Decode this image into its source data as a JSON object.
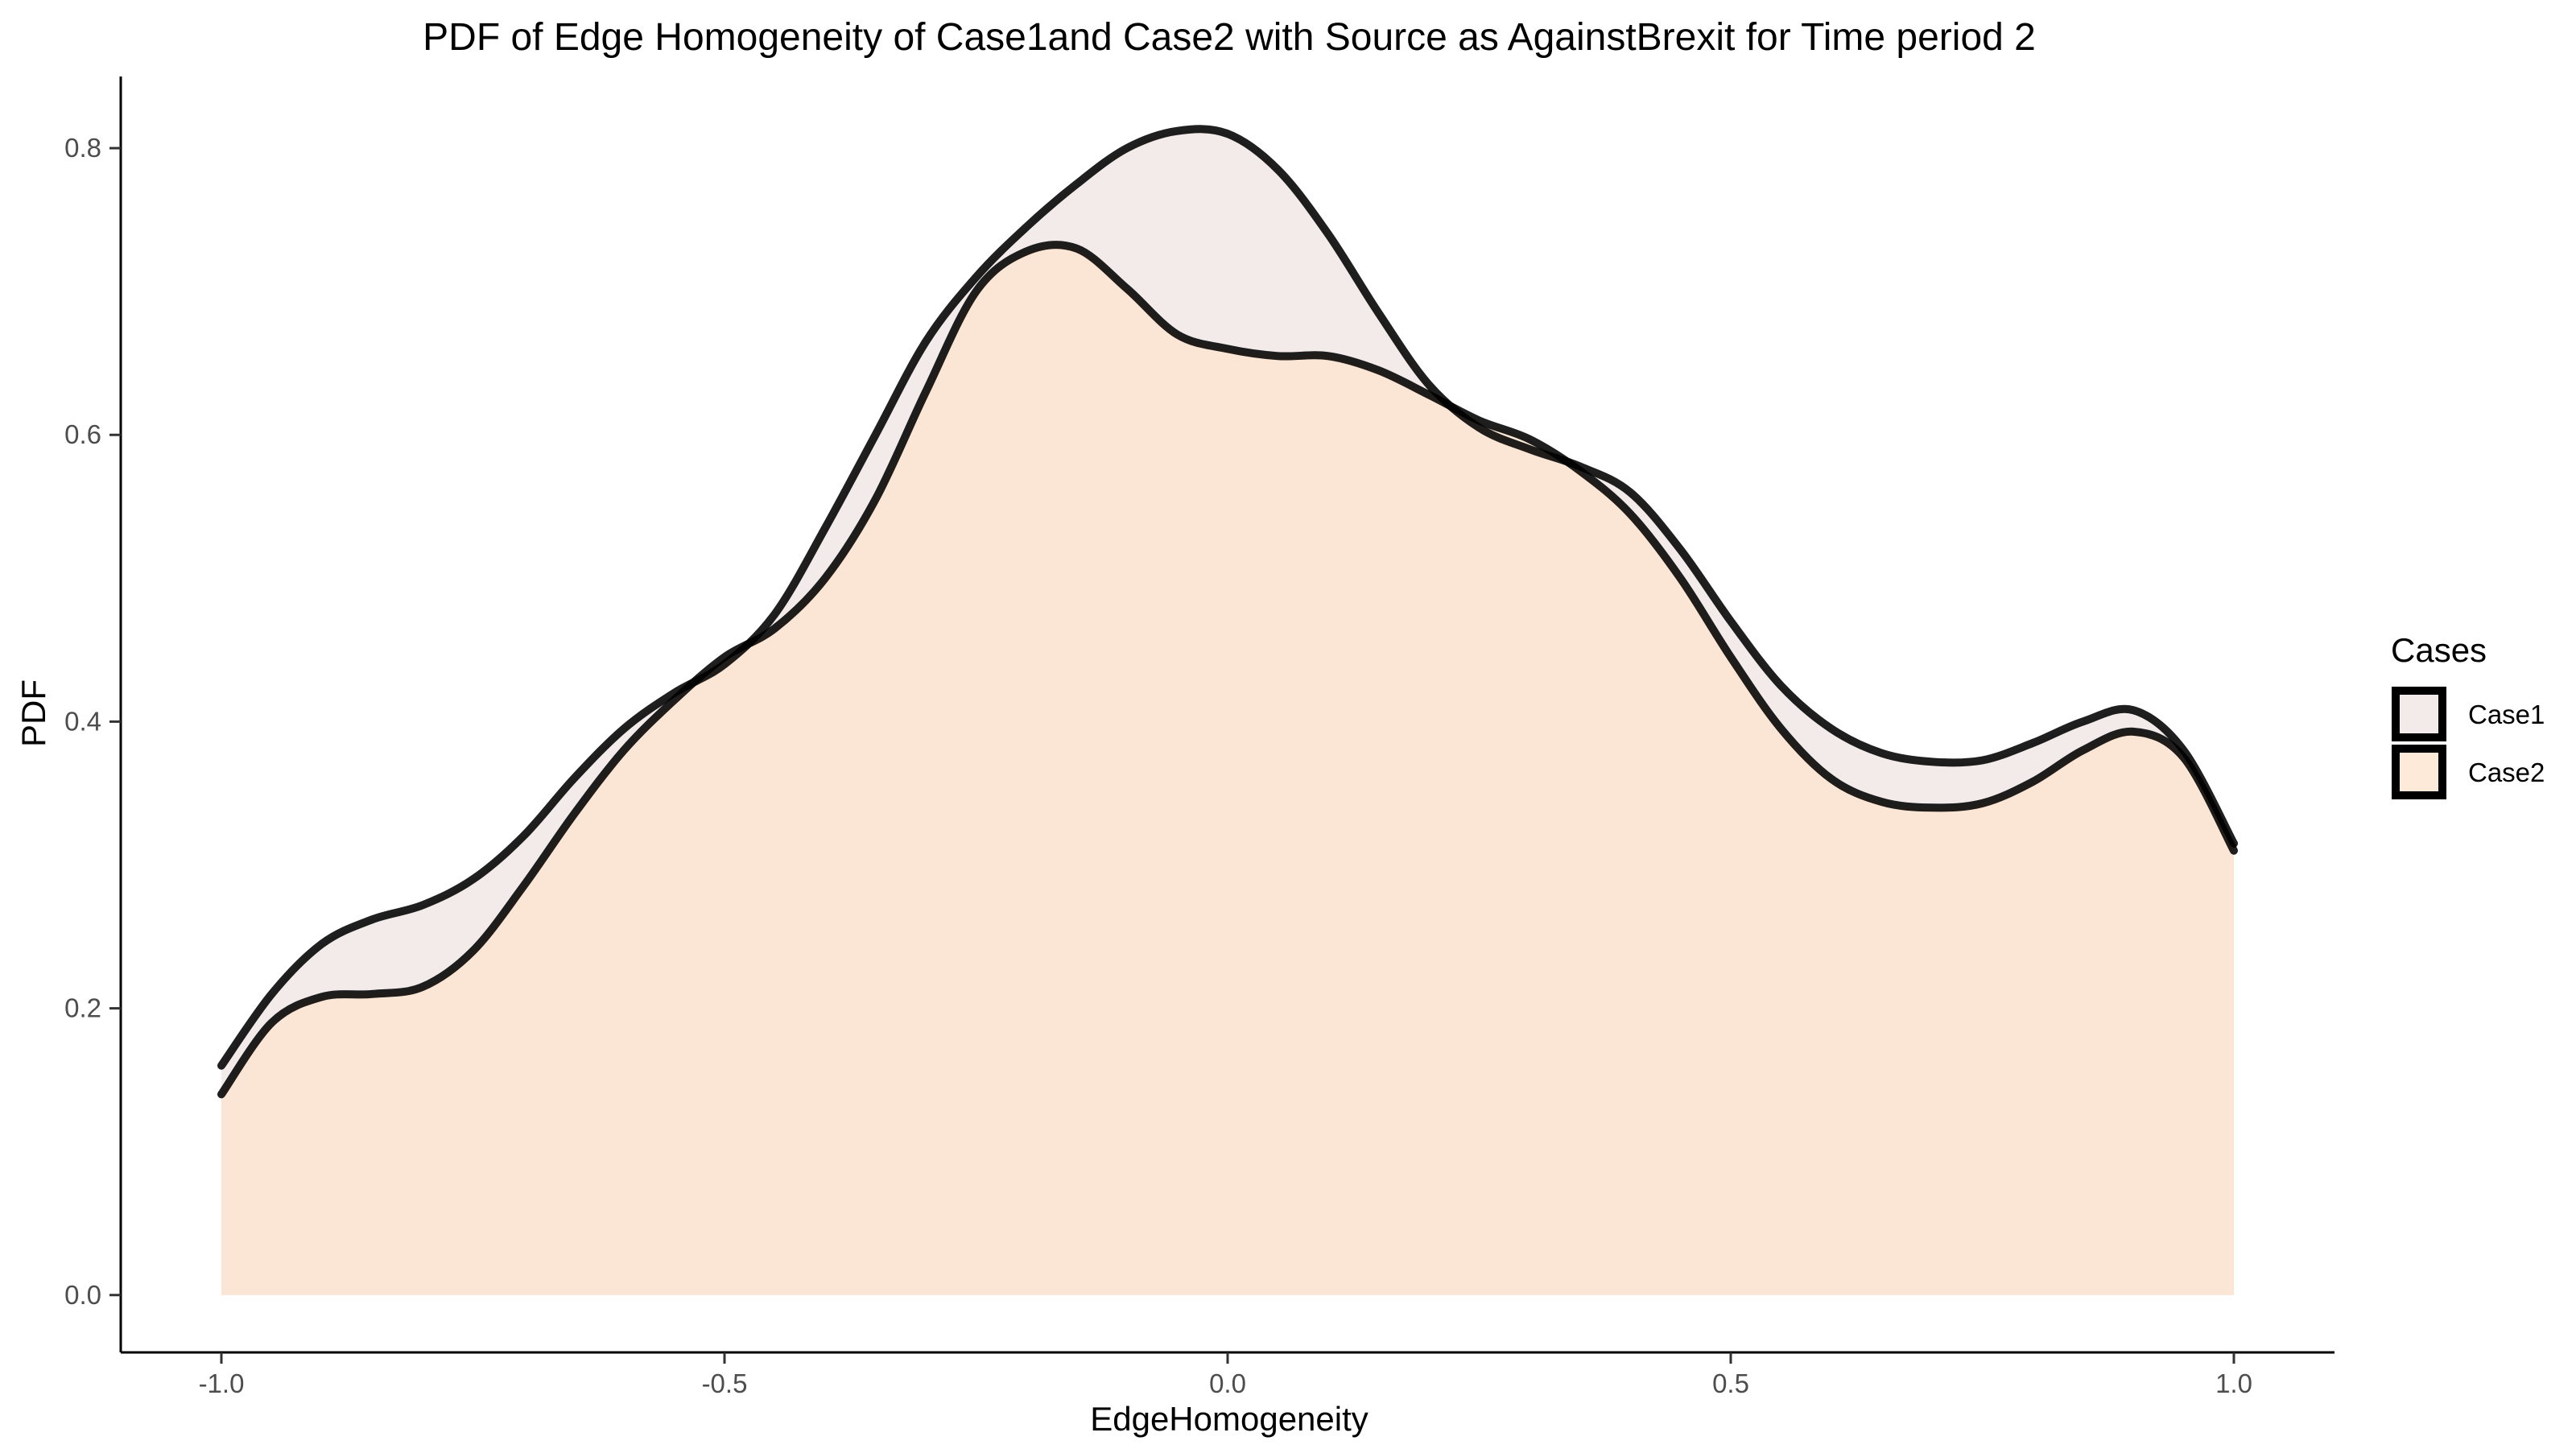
{
  "chart_data": {
    "type": "area",
    "title": "PDF of Edge Homogeneity of Case1and Case2 with Source as AgainstBrexit for Time period 2",
    "xlabel": "EdgeHomogeneity",
    "ylabel": "PDF",
    "xlim": [
      -1.1,
      1.1
    ],
    "ylim": [
      -0.04,
      0.85
    ],
    "x_ticks": [
      -1.0,
      -0.5,
      0.0,
      0.5,
      1.0
    ],
    "x_tick_labels": [
      "-1.0",
      "-0.5",
      "0.0",
      "0.5",
      "1.0"
    ],
    "y_ticks": [
      0.0,
      0.2,
      0.4,
      0.6,
      0.8
    ],
    "y_tick_labels": [
      "0.0",
      "0.2",
      "0.4",
      "0.6",
      "0.8"
    ],
    "grid": false,
    "legend": {
      "title": "Cases",
      "placement": "right"
    },
    "series": [
      {
        "name": "Case1",
        "color": "#efe6e3",
        "x": [
          -1.0,
          -0.95,
          -0.9,
          -0.85,
          -0.8,
          -0.75,
          -0.7,
          -0.65,
          -0.6,
          -0.55,
          -0.5,
          -0.45,
          -0.4,
          -0.35,
          -0.3,
          -0.25,
          -0.2,
          -0.15,
          -0.1,
          -0.05,
          0.0,
          0.05,
          0.1,
          0.15,
          0.2,
          0.25,
          0.3,
          0.35,
          0.4,
          0.45,
          0.5,
          0.55,
          0.6,
          0.65,
          0.7,
          0.75,
          0.8,
          0.85,
          0.9,
          0.95,
          1.0
        ],
        "values": [
          0.16,
          0.21,
          0.245,
          0.262,
          0.272,
          0.29,
          0.32,
          0.36,
          0.395,
          0.42,
          0.44,
          0.475,
          0.535,
          0.6,
          0.665,
          0.71,
          0.745,
          0.775,
          0.8,
          0.812,
          0.81,
          0.785,
          0.74,
          0.685,
          0.635,
          0.605,
          0.59,
          0.578,
          0.56,
          0.52,
          0.47,
          0.425,
          0.395,
          0.378,
          0.372,
          0.373,
          0.385,
          0.4,
          0.408,
          0.38,
          0.315
        ]
      },
      {
        "name": "Case2",
        "color": "#fde5cf",
        "x": [
          -1.0,
          -0.95,
          -0.9,
          -0.85,
          -0.8,
          -0.75,
          -0.7,
          -0.65,
          -0.6,
          -0.55,
          -0.5,
          -0.45,
          -0.4,
          -0.35,
          -0.3,
          -0.25,
          -0.2,
          -0.15,
          -0.1,
          -0.05,
          0.0,
          0.05,
          0.1,
          0.15,
          0.2,
          0.25,
          0.3,
          0.35,
          0.4,
          0.45,
          0.5,
          0.55,
          0.6,
          0.65,
          0.7,
          0.75,
          0.8,
          0.85,
          0.9,
          0.95,
          1.0
        ],
        "values": [
          0.14,
          0.19,
          0.208,
          0.21,
          0.215,
          0.24,
          0.285,
          0.335,
          0.38,
          0.415,
          0.445,
          0.465,
          0.5,
          0.555,
          0.63,
          0.7,
          0.728,
          0.73,
          0.702,
          0.67,
          0.66,
          0.655,
          0.655,
          0.645,
          0.628,
          0.61,
          0.597,
          0.575,
          0.545,
          0.5,
          0.445,
          0.395,
          0.36,
          0.344,
          0.34,
          0.343,
          0.358,
          0.38,
          0.393,
          0.375,
          0.31
        ]
      }
    ]
  }
}
